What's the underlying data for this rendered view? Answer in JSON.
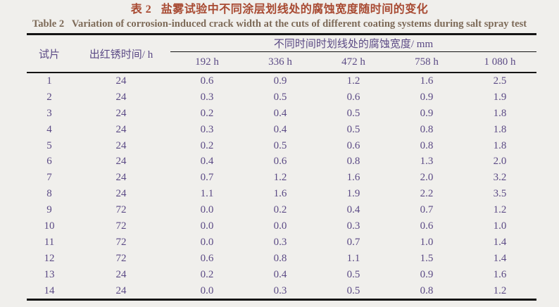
{
  "caption": {
    "zh": "表 2   盐雾试验中不同涂层划线处的腐蚀宽度随时间的变化",
    "en": "Table 2   Variation of corrosion-induced crack width at the cuts of different coating systems during salt spray test"
  },
  "table": {
    "headers": {
      "specimen": "试片",
      "red_rust_time": "出红锈时间/ h",
      "group": "不同时间时划线处的腐蚀宽度/ mm",
      "times": [
        "192 h",
        "336 h",
        "472 h",
        "758 h",
        "1 080 h"
      ]
    },
    "rows": [
      {
        "specimen": "1",
        "red_rust_time": "24",
        "widths": [
          "0.6",
          "0.9",
          "1.2",
          "1.6",
          "2.5"
        ]
      },
      {
        "specimen": "2",
        "red_rust_time": "24",
        "widths": [
          "0.3",
          "0.5",
          "0.6",
          "0.9",
          "1.9"
        ]
      },
      {
        "specimen": "3",
        "red_rust_time": "24",
        "widths": [
          "0.2",
          "0.4",
          "0.5",
          "0.9",
          "1.8"
        ]
      },
      {
        "specimen": "4",
        "red_rust_time": "24",
        "widths": [
          "0.3",
          "0.4",
          "0.5",
          "0.8",
          "1.8"
        ]
      },
      {
        "specimen": "5",
        "red_rust_time": "24",
        "widths": [
          "0.2",
          "0.5",
          "0.6",
          "0.8",
          "1.8"
        ]
      },
      {
        "specimen": "6",
        "red_rust_time": "24",
        "widths": [
          "0.4",
          "0.6",
          "0.8",
          "1.3",
          "2.0"
        ]
      },
      {
        "specimen": "7",
        "red_rust_time": "24",
        "widths": [
          "0.7",
          "1.2",
          "1.6",
          "2.0",
          "3.2"
        ]
      },
      {
        "specimen": "8",
        "red_rust_time": "24",
        "widths": [
          "1.1",
          "1.6",
          "1.9",
          "2.2",
          "3.5"
        ]
      },
      {
        "specimen": "9",
        "red_rust_time": "72",
        "widths": [
          "0.0",
          "0.2",
          "0.4",
          "0.7",
          "1.2"
        ]
      },
      {
        "specimen": "10",
        "red_rust_time": "72",
        "widths": [
          "0.0",
          "0.0",
          "0.3",
          "0.6",
          "1.0"
        ]
      },
      {
        "specimen": "11",
        "red_rust_time": "72",
        "widths": [
          "0.0",
          "0.3",
          "0.7",
          "1.0",
          "1.4"
        ]
      },
      {
        "specimen": "12",
        "red_rust_time": "72",
        "widths": [
          "0.6",
          "0.8",
          "1.1",
          "1.5",
          "1.4"
        ]
      },
      {
        "specimen": "13",
        "red_rust_time": "24",
        "widths": [
          "0.2",
          "0.4",
          "0.5",
          "0.9",
          "1.6"
        ]
      },
      {
        "specimen": "14",
        "red_rust_time": "24",
        "widths": [
          "0.0",
          "0.3",
          "0.5",
          "0.8",
          "1.2"
        ]
      }
    ]
  },
  "colors": {
    "background": "#f0efec",
    "title_zh": "#a84a32",
    "title_en": "#7d6a58",
    "table_text": "#5b4a85",
    "rule": "#141414"
  }
}
